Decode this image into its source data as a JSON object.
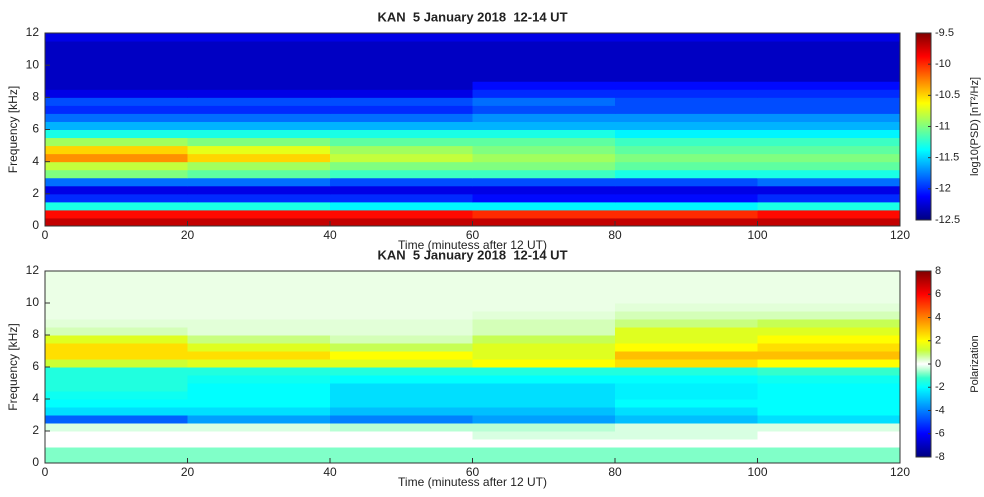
{
  "chart_data": [
    {
      "type": "heatmap",
      "title": "KAN  5 January 2018  12-14 UT",
      "xlabel": "Time (minutess after 12 UT)",
      "ylabel": "Frequency [kHz]",
      "xlim": [
        0,
        120
      ],
      "ylim": [
        0,
        12
      ],
      "xticks": [
        0,
        20,
        40,
        60,
        80,
        100,
        120
      ],
      "yticks": [
        0,
        2,
        4,
        6,
        8,
        10,
        12
      ],
      "xbins": [
        0,
        20,
        40,
        60,
        80,
        100,
        120
      ],
      "ybins": [
        0,
        0.5,
        1,
        1.5,
        2,
        2.5,
        3,
        3.5,
        4,
        4.5,
        5,
        5.5,
        6,
        6.5,
        7,
        7.5,
        8,
        8.5,
        9,
        9.5,
        10,
        10.5,
        11,
        11.5,
        12
      ],
      "z": [
        [
          -9.7,
          -9.7,
          -9.7,
          -9.7,
          -9.7,
          -9.7
        ],
        [
          -9.9,
          -9.9,
          -9.9,
          -10.0,
          -10.0,
          -9.9
        ],
        [
          -11.3,
          -11.3,
          -11.4,
          -11.4,
          -11.4,
          -11.3
        ],
        [
          -12.0,
          -12.0,
          -12.0,
          -12.1,
          -12.1,
          -12.0
        ],
        [
          -12.2,
          -12.2,
          -12.2,
          -12.2,
          -12.2,
          -12.2
        ],
        [
          -11.8,
          -11.8,
          -11.9,
          -11.9,
          -11.9,
          -11.8
        ],
        [
          -11.0,
          -11.1,
          -11.2,
          -11.2,
          -11.3,
          -11.3
        ],
        [
          -10.8,
          -10.9,
          -11.0,
          -11.0,
          -11.1,
          -11.1
        ],
        [
          -10.3,
          -10.5,
          -10.8,
          -10.9,
          -11.0,
          -11.0
        ],
        [
          -10.5,
          -10.7,
          -10.9,
          -11.0,
          -11.1,
          -11.1
        ],
        [
          -10.9,
          -11.0,
          -11.1,
          -11.1,
          -11.2,
          -11.2
        ],
        [
          -11.3,
          -11.3,
          -11.3,
          -11.3,
          -11.4,
          -11.4
        ],
        [
          -11.6,
          -11.6,
          -11.6,
          -11.6,
          -11.6,
          -11.6
        ],
        [
          -11.8,
          -11.8,
          -11.8,
          -11.7,
          -11.7,
          -11.7
        ],
        [
          -12.0,
          -12.0,
          -12.0,
          -11.9,
          -11.9,
          -11.9
        ],
        [
          -11.9,
          -11.9,
          -11.9,
          -11.8,
          -11.9,
          -11.9
        ],
        [
          -12.2,
          -12.2,
          -12.2,
          -12.0,
          -12.0,
          -12.0
        ],
        [
          -12.3,
          -12.3,
          -12.3,
          -12.1,
          -12.1,
          -12.1
        ],
        [
          -12.3,
          -12.3,
          -12.3,
          -12.3,
          -12.3,
          -12.3
        ],
        [
          -12.3,
          -12.3,
          -12.3,
          -12.3,
          -12.3,
          -12.3
        ],
        [
          -12.3,
          -12.3,
          -12.3,
          -12.3,
          -12.3,
          -12.3
        ],
        [
          -12.3,
          -12.3,
          -12.3,
          -12.3,
          -12.3,
          -12.3
        ],
        [
          -12.3,
          -12.3,
          -12.3,
          -12.3,
          -12.3,
          -12.3
        ],
        [
          -12.2,
          -12.2,
          -12.2,
          -12.2,
          -12.2,
          -12.2
        ]
      ],
      "colormap": "jet",
      "colorbar": {
        "label": "log10(PSD) [nT²/Hz]",
        "lim": [
          -12.5,
          -9.5
        ],
        "ticks": [
          -12.5,
          -12,
          -11.5,
          -11,
          -10.5,
          -10,
          -9.5
        ]
      }
    },
    {
      "type": "heatmap",
      "title": "KAN  5 January 2018  12-14 UT",
      "xlabel": "Time (minutess after 12 UT)",
      "ylabel": "Frequency [kHz]",
      "xlim": [
        0,
        120
      ],
      "ylim": [
        0,
        12
      ],
      "xticks": [
        0,
        20,
        40,
        60,
        80,
        100,
        120
      ],
      "yticks": [
        0,
        2,
        4,
        6,
        8,
        10,
        12
      ],
      "xbins": [
        0,
        20,
        40,
        60,
        80,
        100,
        120
      ],
      "ybins": [
        0,
        0.5,
        1,
        1.5,
        2,
        2.5,
        3,
        3.5,
        4,
        4.5,
        5,
        5.5,
        6,
        6.5,
        7,
        7.5,
        8,
        8.5,
        9,
        9.5,
        10,
        10.5,
        11,
        11.5,
        12
      ],
      "z": [
        [
          -0.8,
          -0.8,
          -0.8,
          -0.8,
          -0.8,
          -0.8
        ],
        [
          -0.8,
          -0.8,
          -0.8,
          -0.8,
          -0.8,
          -0.8
        ],
        [
          0,
          0,
          0,
          0,
          0,
          0
        ],
        [
          0,
          0,
          0,
          -0.3,
          -0.3,
          0
        ],
        [
          -0.3,
          -0.3,
          -0.5,
          -0.5,
          -0.3,
          -0.3
        ],
        [
          -4.5,
          -3.5,
          -4,
          -3.5,
          -3,
          -2.5
        ],
        [
          -2.5,
          -2.5,
          -3,
          -3,
          -2.5,
          -2
        ],
        [
          -2,
          -2,
          -2.5,
          -2.5,
          -2,
          -2
        ],
        [
          -1.8,
          -2,
          -2.5,
          -2.5,
          -2.2,
          -2
        ],
        [
          -1.5,
          -2,
          -2.5,
          -2.5,
          -2.2,
          -2
        ],
        [
          -1.5,
          -1.8,
          -2,
          -2,
          -2,
          -1.8
        ],
        [
          -1.5,
          -1.5,
          -1.5,
          -1.5,
          -1.5,
          -1.2
        ],
        [
          1.2,
          1.5,
          1.5,
          2,
          2.5,
          2
        ],
        [
          2.5,
          2.5,
          2,
          1.5,
          3,
          3
        ],
        [
          2.5,
          1.5,
          1,
          1.5,
          2,
          2.5
        ],
        [
          1.5,
          0.8,
          0.5,
          1,
          1.5,
          2
        ],
        [
          0.5,
          0.3,
          0.3,
          0.5,
          1.5,
          1.5
        ],
        [
          0.3,
          0.3,
          0.3,
          0.5,
          0.8,
          1
        ],
        [
          0.2,
          0.2,
          0.2,
          0.3,
          0.5,
          0.5
        ],
        [
          0.2,
          0.2,
          0.2,
          0.2,
          0.3,
          0.3
        ],
        [
          0.2,
          0.2,
          0.2,
          0.2,
          0.2,
          0.2
        ],
        [
          0.2,
          0.2,
          0.2,
          0.2,
          0.2,
          0.2
        ],
        [
          0.2,
          0.2,
          0.2,
          0.2,
          0.2,
          0.2
        ],
        [
          0.2,
          0.2,
          0.2,
          0.2,
          0.2,
          0.2
        ]
      ],
      "colormap": "jet",
      "zero_color": "#ffffff",
      "colorbar": {
        "label": "Polarization",
        "lim": [
          -8,
          8
        ],
        "ticks": [
          -8,
          -6,
          -4,
          -2,
          0,
          2,
          4,
          6,
          8
        ]
      }
    }
  ]
}
